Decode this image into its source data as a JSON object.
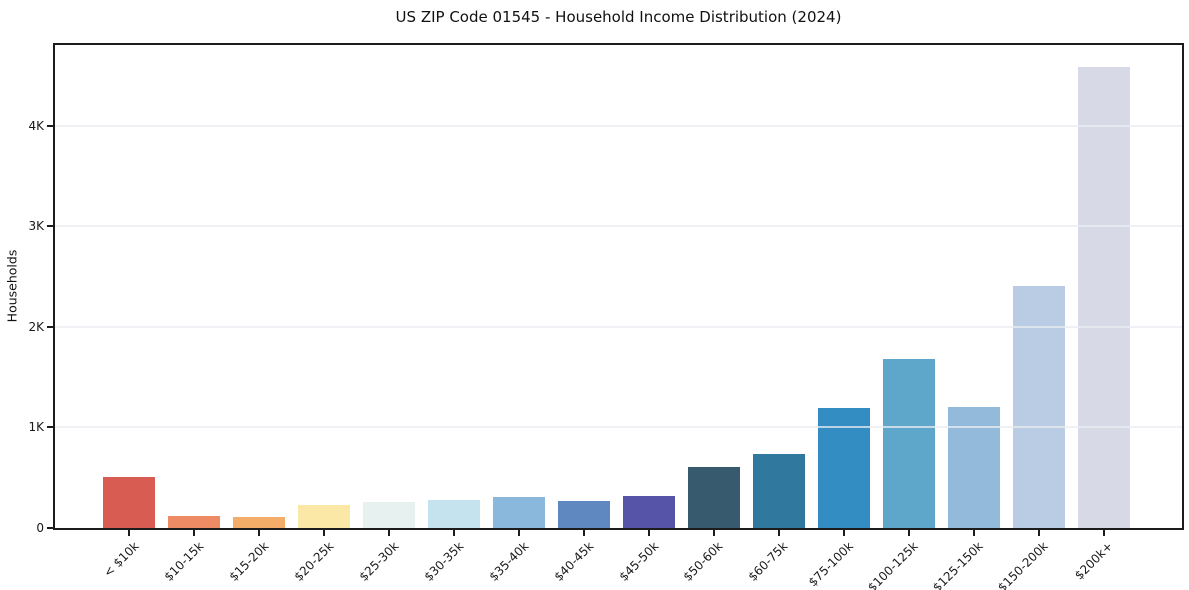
{
  "chart_data": {
    "type": "bar",
    "title": "US ZIP Code 01545 - Household Income Distribution (2024)",
    "xlabel": "",
    "ylabel": "Households",
    "categories": [
      "< $10k",
      "$10-15k",
      "$15-20k",
      "$20-25k",
      "$25-30k",
      "$30-35k",
      "$35-40k",
      "$40-45k",
      "$45-50k",
      "$50-60k",
      "$60-75k",
      "$75-100k",
      "$100-125k",
      "$125-150k",
      "$150-200k",
      "$200k+"
    ],
    "values": [
      510,
      120,
      105,
      230,
      255,
      275,
      310,
      265,
      315,
      605,
      740,
      1190,
      1675,
      1200,
      2405,
      4580
    ],
    "bar_colors": [
      "#d85c51",
      "#ee8a64",
      "#f4ad68",
      "#fce8a6",
      "#e7f2f0",
      "#c5e2ef",
      "#8ab8dc",
      "#5f88c1",
      "#5654a8",
      "#375a6f",
      "#30789e",
      "#338dc3",
      "#5ea7cb",
      "#94badb",
      "#b9cce4",
      "#d8d9e7"
    ],
    "ylim": [
      0,
      4800
    ],
    "yticks": [
      {
        "value": 0,
        "label": "0"
      },
      {
        "value": 1000,
        "label": "1K"
      },
      {
        "value": 2000,
        "label": "2K"
      },
      {
        "value": 3000,
        "label": "3K"
      },
      {
        "value": 4000,
        "label": "4K"
      }
    ],
    "grid": "horizontal",
    "legend": "none"
  },
  "colors": {
    "background": "#ffffff",
    "spine": "#1c1c1c",
    "grid": "#e9ecf0",
    "text": "#1a1a1a"
  }
}
